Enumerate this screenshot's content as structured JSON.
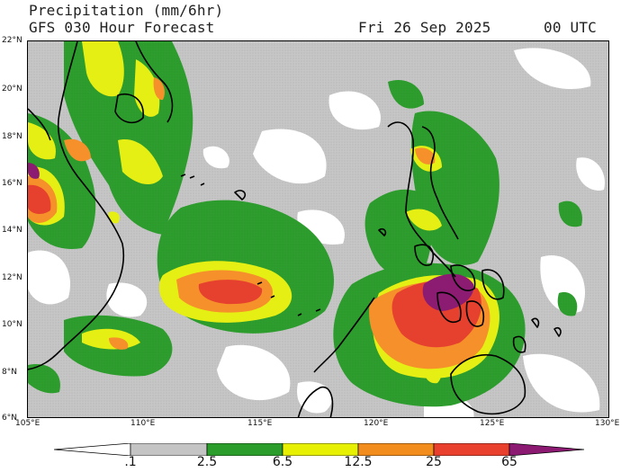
{
  "header": {
    "title_line1": "Precipitation (mm/6hr)",
    "title_line2": "GFS 030 Hour Forecast",
    "valid_date": "Fri 26 Sep 2025",
    "valid_time": "00 UTC"
  },
  "map": {
    "lat_labels": [
      "22°N",
      "20°N",
      "18°N",
      "16°N",
      "14°N",
      "12°N",
      "10°N",
      "8°N",
      "6°N"
    ],
    "lon_labels": [
      "105°E",
      "110°E",
      "115°E",
      "120°E",
      "125°E",
      "130°E"
    ],
    "region": "South China Sea / Philippines",
    "colors": {
      "gray": "#c4c4c4",
      "green": "#2a9d2a",
      "yellow": "#e6f000",
      "orange": "#f28c1c",
      "red": "#e8402c",
      "purple": "#8c1a73",
      "coast": "#000000"
    }
  },
  "colorbar": {
    "labels": [
      ".1",
      "2.5",
      "6.5",
      "12.5",
      "25",
      "65"
    ],
    "colors": [
      "#c4c4c4",
      "#2a9d2a",
      "#e6f000",
      "#f28c1c",
      "#e8402c",
      "#8c1a73"
    ]
  }
}
